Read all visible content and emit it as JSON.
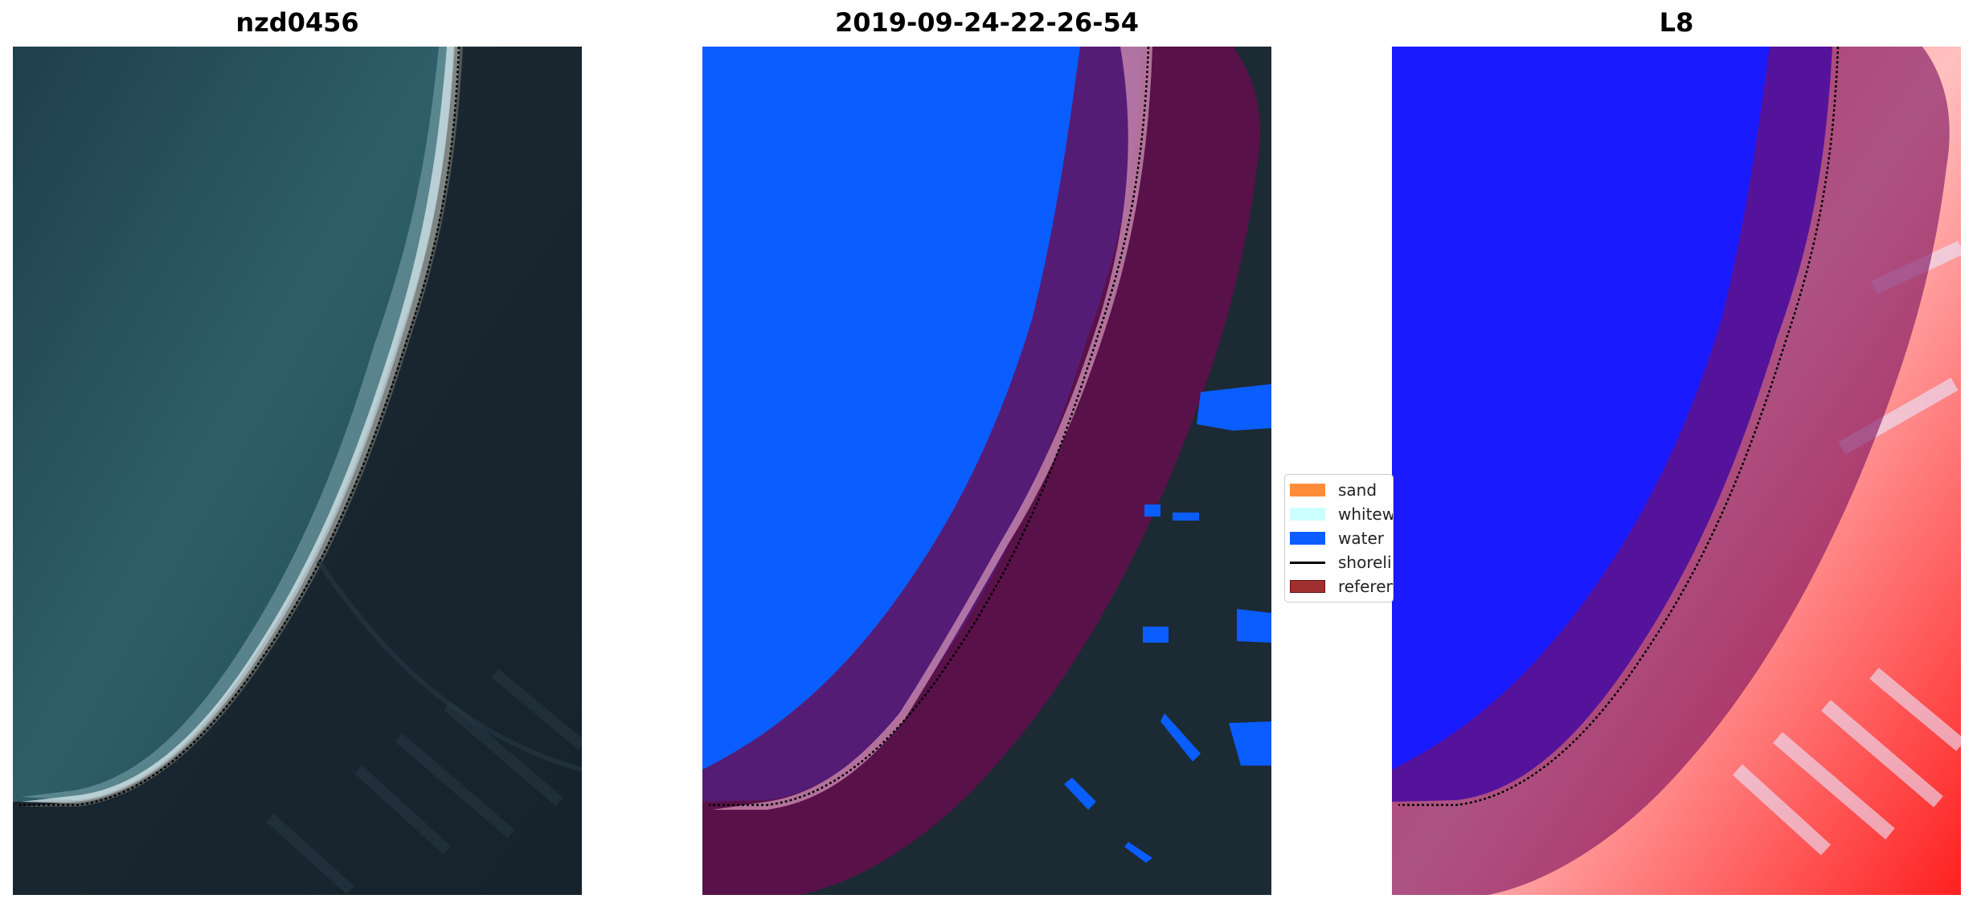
{
  "panels": [
    {
      "title": "nzd0456"
    },
    {
      "title": "2019-09-24-22-26-54"
    },
    {
      "title": "L8"
    }
  ],
  "legend": {
    "items": [
      {
        "label": "sand",
        "color": "#ff8c3a",
        "kind": "patch"
      },
      {
        "label": "whitewater",
        "color": "#ccffff",
        "kind": "patch"
      },
      {
        "label": "water",
        "color": "#0a5dff",
        "kind": "patch"
      },
      {
        "label": "shoreline",
        "color": "#000000",
        "kind": "line"
      },
      {
        "label": "reference shoreline buffer",
        "color": "#a03030",
        "kind": "patch"
      }
    ]
  },
  "colors": {
    "land": "#1c2a36",
    "ocean": "#2e5a64",
    "water_class": "#0a5dff",
    "buffer": "#7a1040",
    "ndwi_water": "#1010ff",
    "ndwi_land": "#ff4040"
  }
}
